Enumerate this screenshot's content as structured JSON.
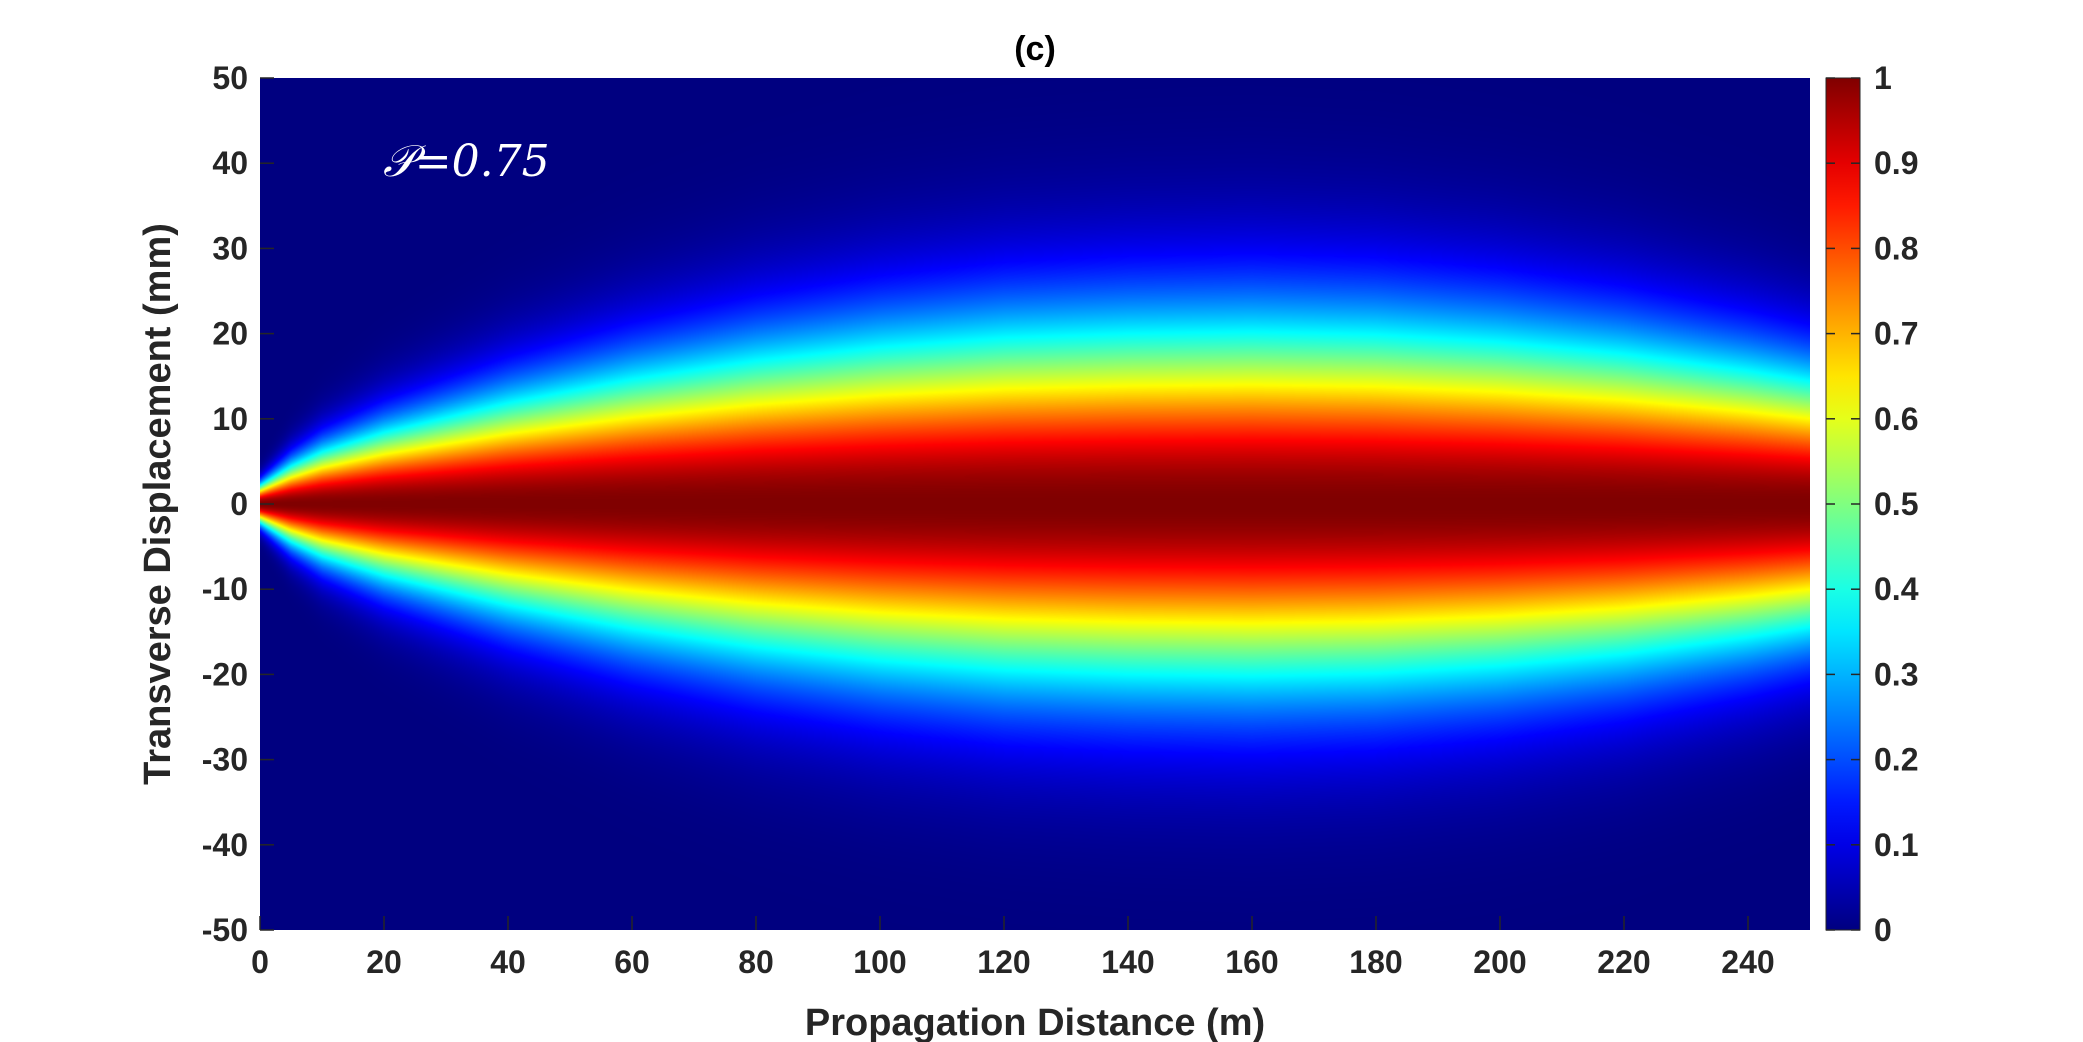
{
  "chart_data": {
    "type": "heatmap",
    "title": "(c)",
    "xlabel": "Propagation Distance (m)",
    "ylabel": "Transverse Displacement (mm)",
    "xlim": [
      0,
      250
    ],
    "ylim": [
      -50,
      50
    ],
    "xticks": [
      0,
      20,
      40,
      60,
      80,
      100,
      120,
      140,
      160,
      180,
      200,
      220,
      240
    ],
    "yticks": [
      -50,
      -40,
      -30,
      -20,
      -10,
      0,
      10,
      20,
      30,
      40,
      50
    ],
    "colorbar": {
      "limits": [
        0,
        1
      ],
      "ticks": [
        0,
        0.1,
        0.2,
        0.3,
        0.4,
        0.5,
        0.6,
        0.7,
        0.8,
        0.9,
        1
      ],
      "colormap": "jet"
    },
    "annotation": "𝒫=0.75",
    "profile": {
      "description_of_values": "Normalized intensity exp(-(y/w(z))^2); half-width w at 1/e in mm versus propagation distance z in m",
      "z": [
        0,
        5,
        10,
        20,
        40,
        60,
        80,
        100,
        120,
        140,
        160,
        180,
        200,
        220,
        240,
        250
      ],
      "w": [
        2.2,
        4.5,
        6.2,
        8.5,
        12.0,
        14.8,
        17.0,
        18.6,
        19.7,
        20.2,
        20.4,
        20.1,
        19.2,
        17.8,
        15.8,
        14.6
      ]
    },
    "grid": false
  }
}
